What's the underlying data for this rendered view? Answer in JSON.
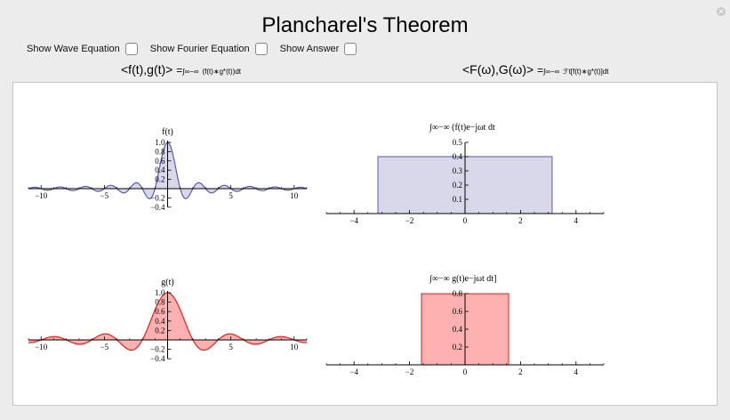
{
  "title": "Plancharel's Theorem",
  "controls": [
    {
      "label": "Show Wave Equation"
    },
    {
      "label": "Show Fourier Equation"
    },
    {
      "label": "Show Answer"
    }
  ],
  "formula_left": {
    "lhs": "<f(t),g(t)>",
    "eq": "=",
    "int": "∫∞−∞",
    "rhs": "(f(t)∗g*(t))dt"
  },
  "formula_right": {
    "lhs": "<F(ω),G(ω)>",
    "eq": "=",
    "int": "∫∞−∞",
    "rhs": "ℱt[f(t)∗g*(t)]dt"
  },
  "colors": {
    "blue_line": "#5a5aa8",
    "blue_fill": "#d8d8ea",
    "red_line": "#e02020",
    "red_fill": "#ffb0b0"
  },
  "chart_data": [
    {
      "type": "area",
      "title": "f(t)",
      "function": "sinc",
      "frequency": 1.0,
      "xlim": [
        -11,
        11
      ],
      "ylim": [
        -0.4,
        1.0
      ],
      "xticks": [
        -10,
        -5,
        5,
        10
      ],
      "yticks": [
        1.0,
        0.8,
        0.6,
        0.4,
        0.2,
        -0.2,
        -0.4
      ],
      "ytick_labels": [
        "1.0",
        "0.8",
        "0.6",
        "0.4",
        "0.2",
        "-0.2",
        "-0.4"
      ]
    },
    {
      "type": "area",
      "title": "∫∞−∞ (f(t)e−jωt dt",
      "function": "rect",
      "x_range": [
        -3.14,
        3.14
      ],
      "height": 0.4,
      "xlim": [
        -5,
        5
      ],
      "ylim": [
        0,
        0.5
      ],
      "xticks": [
        -4,
        -2,
        0,
        2,
        4
      ],
      "yticks": [
        0.5,
        0.4,
        0.3,
        0.2,
        0.1
      ],
      "ytick_labels": [
        "0.5",
        "0.4",
        "0.3",
        "0.2",
        "0.1"
      ]
    },
    {
      "type": "area",
      "title": "g(t)",
      "function": "sinc",
      "frequency": 0.5,
      "xlim": [
        -11,
        11
      ],
      "ylim": [
        -0.4,
        1.0
      ],
      "xticks": [
        -10,
        -5,
        5,
        10
      ],
      "yticks": [
        1.0,
        0.8,
        0.6,
        0.4,
        0.2,
        -0.2,
        -0.4
      ],
      "ytick_labels": [
        "1.0",
        "0.8",
        "0.6",
        "0.4",
        "0.2",
        "-0.2",
        "-0.4"
      ]
    },
    {
      "type": "area",
      "title": "∫∞−∞ g(t)e−jωt dt]",
      "function": "rect",
      "x_range": [
        -1.57,
        1.57
      ],
      "height": 0.8,
      "xlim": [
        -5,
        5
      ],
      "ylim": [
        0,
        0.8
      ],
      "xticks": [
        -4,
        -2,
        0,
        2,
        4
      ],
      "yticks": [
        0.8,
        0.6,
        0.4,
        0.2
      ],
      "ytick_labels": [
        "0.8",
        "0.6",
        "0.4",
        "0.2"
      ]
    }
  ]
}
